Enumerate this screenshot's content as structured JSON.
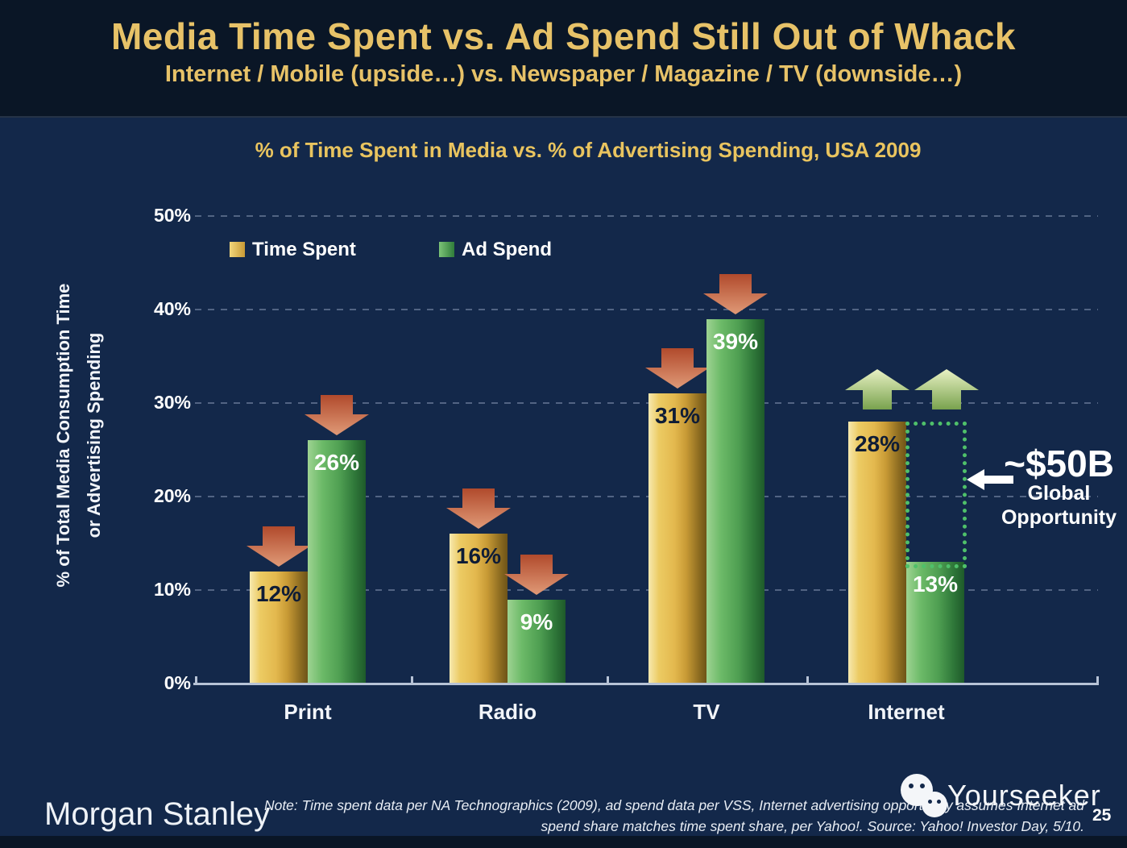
{
  "header": {
    "title": "Media Time Spent vs. Ad Spend Still Out of Whack",
    "subtitle": "Internet / Mobile (upside…) vs. Newspaper / Magazine / TV (downside…)"
  },
  "chart_data": {
    "type": "bar",
    "title": "% of Time Spent in Media vs. % of Advertising Spending, USA 2009",
    "categories": [
      "Print",
      "Radio",
      "TV",
      "Internet"
    ],
    "series": [
      {
        "name": "Time Spent",
        "values": [
          12,
          16,
          31,
          28
        ],
        "labels": [
          "12%",
          "16%",
          "31%",
          "28%"
        ]
      },
      {
        "name": "Ad Spend",
        "values": [
          26,
          9,
          39,
          13
        ],
        "labels": [
          "26%",
          "9%",
          "39%",
          "13%"
        ]
      }
    ],
    "arrows_by_category": [
      "down",
      "down",
      "down",
      "up"
    ],
    "ylabel_line1": "% of Total Media Consumption Time",
    "ylabel_line2": "or Advertising Spending",
    "yticks": [
      "0%",
      "10%",
      "20%",
      "30%",
      "40%",
      "50%"
    ],
    "ylim": [
      0,
      50
    ],
    "grid": "dashed-horizontal",
    "legend_position": "top-left-inside",
    "annotation": {
      "value": "~$50B",
      "line1": "Global",
      "line2": "Opportunity",
      "box": {
        "category": "Internet",
        "from_value": 13,
        "to_value": 28
      }
    },
    "colors": {
      "time_spent": "#e3b84e",
      "ad_spend": "#4f9f52",
      "arrow_down": "#c65a38",
      "arrow_up": "#a9c77e",
      "opportunity_box": "#4fc06a"
    }
  },
  "footer": {
    "brand": "Morgan Stanley",
    "note_line1": "Note: Time spent data per NA Technographics (2009), ad spend data per VSS, Internet advertising opportunity assumes Internet ad",
    "note_line2": "spend share matches time spent share, per Yahoo!. Source: Yahoo! Investor Day, 5/10.",
    "watermark": "Yourseeker",
    "page_number": "25"
  }
}
